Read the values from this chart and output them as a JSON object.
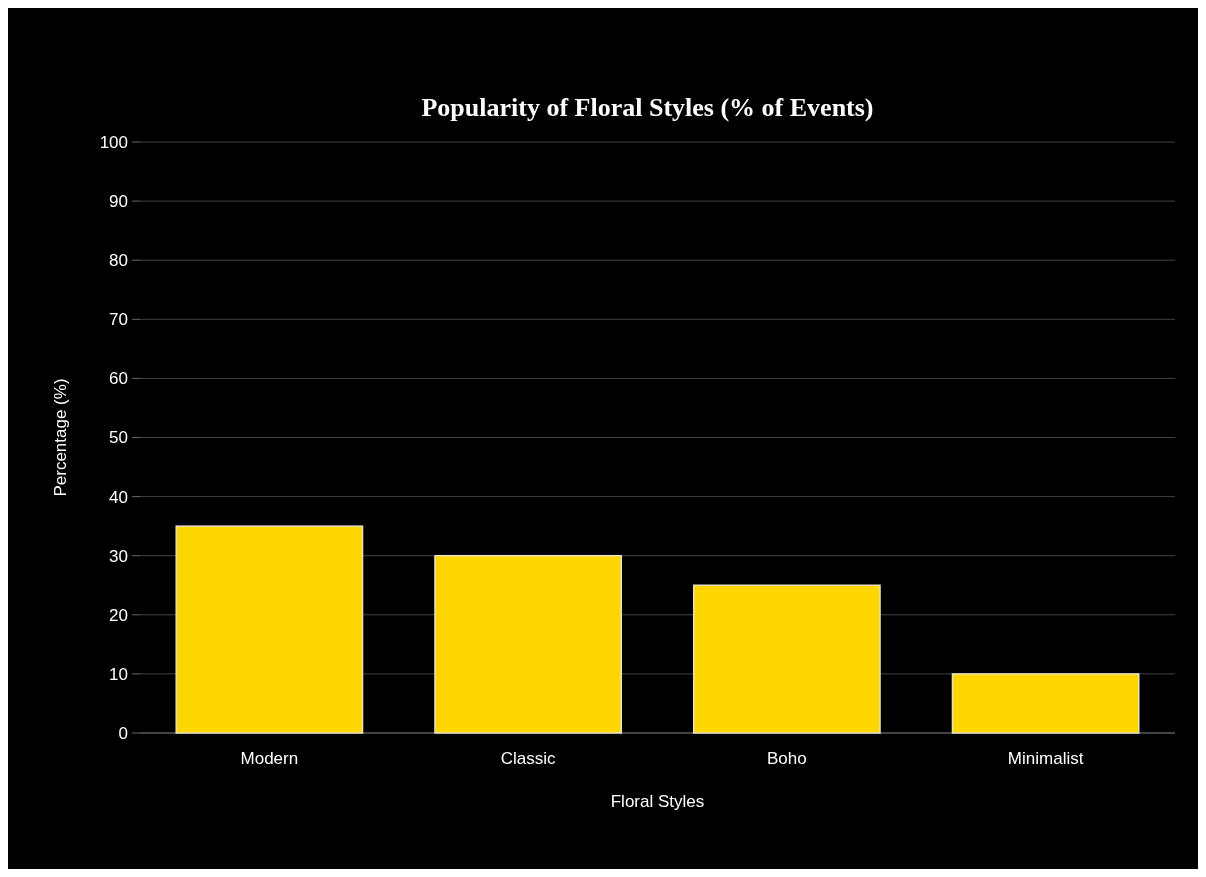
{
  "chart_data": {
    "type": "bar",
    "title": "Popularity of Floral Styles (% of Events)",
    "xlabel": "Floral Styles",
    "ylabel": "Percentage (%)",
    "categories": [
      "Modern",
      "Classic",
      "Boho",
      "Minimalist"
    ],
    "values": [
      35,
      30,
      25,
      10
    ],
    "color": "#ffd700",
    "ylim": [
      0,
      100
    ],
    "yticks": [
      0,
      10,
      20,
      30,
      40,
      50,
      60,
      70,
      80,
      90,
      100
    ],
    "grid": "y"
  }
}
